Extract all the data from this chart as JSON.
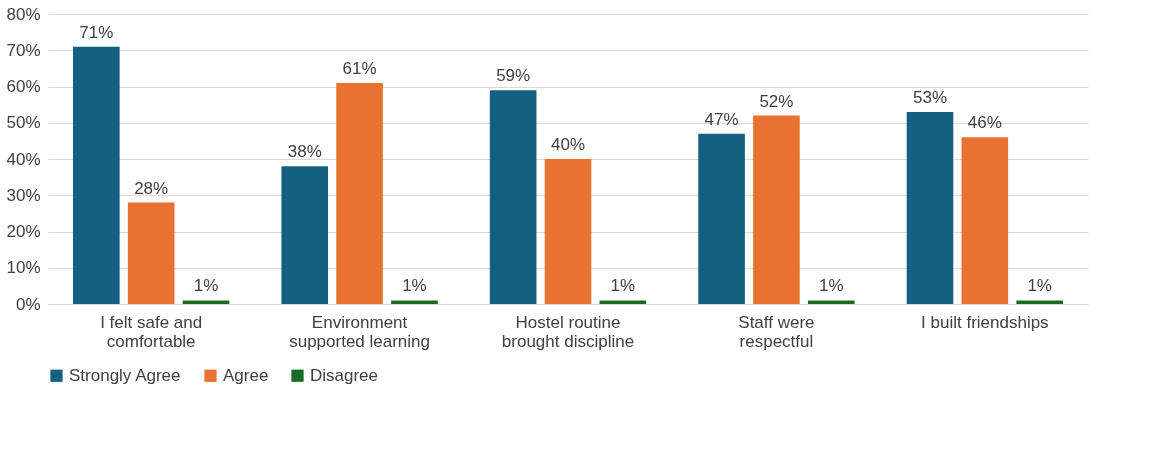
{
  "chart_data": {
    "type": "bar",
    "categories": [
      "I felt safe and comfortable",
      "Environment supported learning",
      "Hostel routine brought discipline",
      "Staff were respectful",
      "I built friendships"
    ],
    "series": [
      {
        "name": "Strongly Agree",
        "color": "#156082",
        "values": [
          71,
          38,
          59,
          47,
          53
        ],
        "value_labels": [
          "71%",
          "38%",
          "59%",
          "47%",
          "53%"
        ]
      },
      {
        "name": "Agree",
        "color": "#e97132",
        "values": [
          28,
          61,
          40,
          52,
          46
        ],
        "value_labels": [
          "28%",
          "61%",
          "40%",
          "52%",
          "46%"
        ]
      },
      {
        "name": "Disagree",
        "color": "#196b24",
        "values": [
          1,
          1,
          1,
          1,
          1
        ],
        "value_labels": [
          "1%",
          "1%",
          "1%",
          "1%",
          "1%"
        ]
      }
    ],
    "ylim": [
      0,
      80
    ],
    "yticks": [
      {
        "value": 0,
        "label": "0%"
      },
      {
        "value": 10,
        "label": "10%"
      },
      {
        "value": 20,
        "label": "20%"
      },
      {
        "value": 30,
        "label": "30%"
      },
      {
        "value": 40,
        "label": "40%"
      },
      {
        "value": 50,
        "label": "50%"
      },
      {
        "value": 60,
        "label": "60%"
      },
      {
        "value": 70,
        "label": "70%"
      },
      {
        "value": 80,
        "label": "80%"
      }
    ],
    "grid": "y",
    "legend": "bottom"
  }
}
